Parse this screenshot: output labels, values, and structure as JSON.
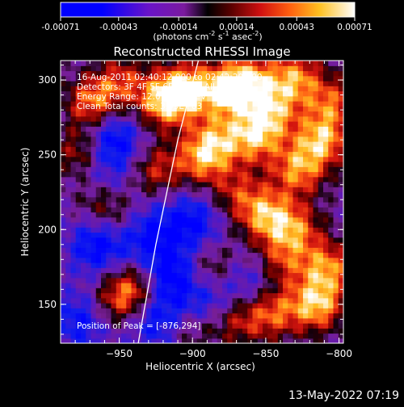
{
  "chart_data": {
    "type": "heatmap",
    "title": "Reconstructed RHESSI Image",
    "xlabel": "Heliocentric X (arcsec)",
    "ylabel": "Heliocentric Y (arcsec)",
    "xlim": [
      -990,
      -797
    ],
    "ylim": [
      124,
      313
    ],
    "x_ticks": [
      -950,
      -900,
      -850,
      -800
    ],
    "y_ticks": [
      150,
      200,
      250,
      300
    ],
    "colorbar": {
      "ticks": [
        "-0.00071",
        "-0.00043",
        "-0.00014",
        "0.00014",
        "0.00043",
        "0.00071"
      ],
      "tick_values": [
        -0.00071,
        -0.00043,
        -0.00014,
        0.00014,
        0.00043,
        0.00071
      ],
      "range": [
        -0.00071,
        0.00071
      ],
      "unit_parts": {
        "base1": "(photons cm",
        "sup1": "-2",
        "base2": " s",
        "sup2": "-1",
        "base3": " asec",
        "sup3": "-2",
        "end": ")"
      }
    },
    "annotations": [
      "16-Aug-2011 02:40:12.000 to 02:42:20.000",
      "Detectors: 3F 4F 5F 6F 7F 8F, All",
      "Energy Range: 12.0 - 25.0 keV",
      "Clean     Total counts: 3.59E+03"
    ],
    "peak_label": "Position of Peak = [-876,294]",
    "peak": [
      -876,
      294
    ],
    "limb_curve": [
      [
        -937,
        124
      ],
      [
        -925,
        190
      ],
      [
        -910,
        260
      ],
      [
        -896,
        313
      ]
    ],
    "bright_spots": [
      {
        "x": -905,
        "y": 294,
        "v": 1.0
      },
      {
        "x": -920,
        "y": 285,
        "v": 0.85
      },
      {
        "x": -968,
        "y": 285,
        "v": 0.8
      },
      {
        "x": -975,
        "y": 252,
        "v": 0.6
      },
      {
        "x": -948,
        "y": 300,
        "v": 0.55
      },
      {
        "x": -962,
        "y": 220,
        "v": 0.65
      },
      {
        "x": -945,
        "y": 205,
        "v": 0.5
      },
      {
        "x": -940,
        "y": 160,
        "v": 0.75
      },
      {
        "x": -955,
        "y": 150,
        "v": 0.45
      },
      {
        "x": -925,
        "y": 240,
        "v": 0.55
      },
      {
        "x": -893,
        "y": 248,
        "v": 0.8
      },
      {
        "x": -883,
        "y": 262,
        "v": 0.6
      },
      {
        "x": -876,
        "y": 294,
        "v": 1.0
      },
      {
        "x": -860,
        "y": 300,
        "v": 0.7
      },
      {
        "x": -857,
        "y": 262,
        "v": 0.85
      },
      {
        "x": -846,
        "y": 280,
        "v": 0.75
      },
      {
        "x": -830,
        "y": 302,
        "v": 0.8
      },
      {
        "x": -812,
        "y": 260,
        "v": 0.9
      },
      {
        "x": -828,
        "y": 240,
        "v": 0.8
      },
      {
        "x": -805,
        "y": 285,
        "v": 0.65
      },
      {
        "x": -850,
        "y": 210,
        "v": 0.85
      },
      {
        "x": -870,
        "y": 225,
        "v": 0.5
      },
      {
        "x": -830,
        "y": 200,
        "v": 0.7
      },
      {
        "x": -840,
        "y": 178,
        "v": 0.55
      },
      {
        "x": -808,
        "y": 175,
        "v": 0.8
      },
      {
        "x": -815,
        "y": 150,
        "v": 0.95
      },
      {
        "x": -845,
        "y": 145,
        "v": 0.7
      },
      {
        "x": -870,
        "y": 140,
        "v": 0.55
      },
      {
        "x": -888,
        "y": 175,
        "v": 0.45
      },
      {
        "x": -900,
        "y": 135,
        "v": 0.4
      }
    ],
    "dark_spots": [
      {
        "x": -955,
        "y": 260,
        "v": 0.9
      },
      {
        "x": -965,
        "y": 190,
        "v": 0.8
      },
      {
        "x": -935,
        "y": 200,
        "v": 0.9
      },
      {
        "x": -915,
        "y": 170,
        "v": 0.85
      },
      {
        "x": -925,
        "y": 140,
        "v": 0.7
      },
      {
        "x": -900,
        "y": 205,
        "v": 0.75
      },
      {
        "x": -890,
        "y": 150,
        "v": 0.6
      },
      {
        "x": -975,
        "y": 140,
        "v": 0.7
      },
      {
        "x": -860,
        "y": 165,
        "v": 0.5
      },
      {
        "x": -960,
        "y": 230,
        "v": 0.6
      }
    ]
  },
  "timestamp": "13-May-2022 07:19"
}
